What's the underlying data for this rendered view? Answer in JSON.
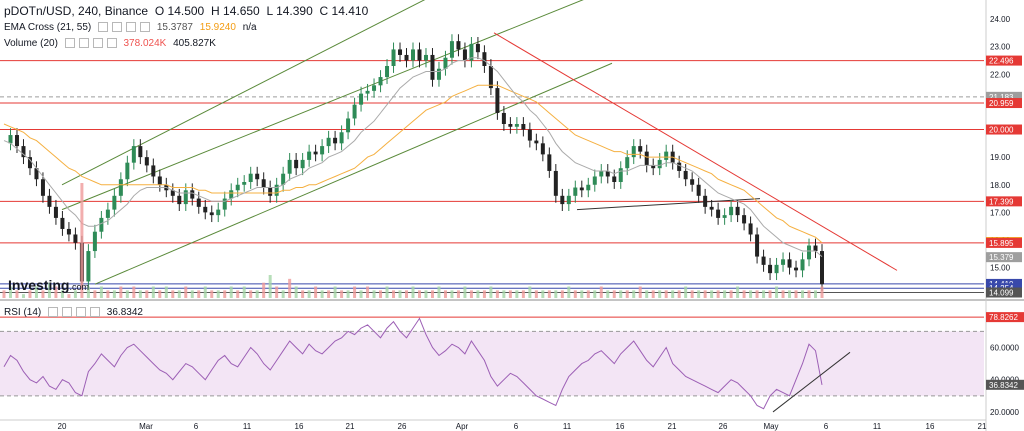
{
  "header": {
    "symbol": "pDOTn/USD, 240, Binance",
    "open": "O 14.500",
    "high": "H 14.650",
    "low": "L 14.390",
    "close": "C 14.410"
  },
  "ema_legend": {
    "label": "EMA Cross (21, 55)",
    "v1": "15.3787",
    "v2": "15.9240",
    "v3": "n/a"
  },
  "volume_legend": {
    "label": "Volume (20)",
    "v1": "378.024K",
    "v2": "405.827K"
  },
  "rsi_legend": {
    "label": "RSI (14)",
    "value": "36.8342"
  },
  "logo": {
    "text": "Investing",
    "suffix": ".com"
  },
  "colors": {
    "up": "#26a69a",
    "down": "#ef5350",
    "candle_body": "#222222",
    "candle_up": "#2e8b57",
    "ema_fast": "#aaaaaa",
    "ema_slow": "#f5b041",
    "channel": "#5a8a3a",
    "resistance": "#e53935",
    "support": "#3949ab",
    "rsi_line": "#9c5fb5",
    "rsi_band": "#f3e5f5",
    "axis_text": "#131722"
  },
  "chart_data": {
    "type": "candlestick",
    "x_ticks": [
      "20",
      "Mar",
      "6",
      "11",
      "16",
      "21",
      "26",
      "Apr",
      "6",
      "11",
      "16",
      "21",
      "26",
      "May",
      "6",
      "11",
      "16",
      "21"
    ],
    "y_ticks": [
      24.0,
      23.0,
      22.0,
      21.0,
      20.0,
      19.0,
      18.0,
      17.0,
      16.0,
      15.0
    ],
    "ylim": [
      13.9,
      24.4
    ],
    "levels": [
      {
        "label": "22.496",
        "value": 22.496,
        "color": "#e53935",
        "kind": "line"
      },
      {
        "label": "21.183",
        "value": 21.183,
        "color": "#9e9e9e",
        "kind": "dashed"
      },
      {
        "label": "20.959",
        "value": 20.959,
        "color": "#e53935",
        "kind": "line"
      },
      {
        "label": "20.000",
        "value": 20.0,
        "color": "#e53935",
        "kind": "line"
      },
      {
        "label": "17.399",
        "value": 17.399,
        "color": "#e53935",
        "kind": "line"
      },
      {
        "label": "15.924",
        "value": 15.924,
        "color": "#f39c12",
        "kind": "tag"
      },
      {
        "label": "15.895",
        "value": 15.895,
        "color": "#e53935",
        "kind": "line"
      },
      {
        "label": "15.379",
        "value": 15.379,
        "color": "#9e9e9e",
        "kind": "tag"
      },
      {
        "label": "14.410",
        "value": 14.41,
        "color": "#3949ab",
        "kind": "line"
      },
      {
        "label": "14.254",
        "value": 14.254,
        "color": "#3949ab",
        "kind": "line"
      },
      {
        "label": "14.099",
        "value": 14.099,
        "color": "#555555",
        "kind": "line"
      }
    ],
    "price_series": [
      19.5,
      19.8,
      19.4,
      19.0,
      18.6,
      18.2,
      17.6,
      17.2,
      16.8,
      16.4,
      16.2,
      15.9,
      14.5,
      15.6,
      16.3,
      16.8,
      17.1,
      17.6,
      18.2,
      18.8,
      19.4,
      19.0,
      18.7,
      18.3,
      18.0,
      17.8,
      17.6,
      17.3,
      17.8,
      17.5,
      17.2,
      17.0,
      16.9,
      17.1,
      17.5,
      17.8,
      18.0,
      18.1,
      18.4,
      18.2,
      17.9,
      17.6,
      18.0,
      18.4,
      18.9,
      18.6,
      18.9,
      19.2,
      19.1,
      19.4,
      19.7,
      19.5,
      19.9,
      20.4,
      20.9,
      21.3,
      21.4,
      21.6,
      21.9,
      22.3,
      22.9,
      22.7,
      22.5,
      22.9,
      22.5,
      22.7,
      21.8,
      22.2,
      22.6,
      23.2,
      22.9,
      22.5,
      23.1,
      22.8,
      22.3,
      21.5,
      20.6,
      20.2,
      20.1,
      20.2,
      20.0,
      19.6,
      19.5,
      19.1,
      18.5,
      17.6,
      17.3,
      17.6,
      17.9,
      17.8,
      18.0,
      18.3,
      18.5,
      18.3,
      18.1,
      18.6,
      19.0,
      19.4,
      19.2,
      18.7,
      18.6,
      18.9,
      19.2,
      18.8,
      18.5,
      18.2,
      18.0,
      17.6,
      17.2,
      17.1,
      16.8,
      16.9,
      17.2,
      16.9,
      16.6,
      16.2,
      15.4,
      15.1,
      14.8,
      15.1,
      15.3,
      15.0,
      14.9,
      15.3,
      15.8,
      15.6,
      14.4
    ],
    "ema_fast": [
      19.6,
      19.5,
      19.3,
      19.1,
      18.9,
      18.6,
      18.3,
      18.0,
      17.7,
      17.4,
      17.1,
      16.9,
      16.6,
      16.5,
      16.5,
      16.6,
      16.7,
      16.9,
      17.1,
      17.3,
      17.6,
      17.8,
      17.9,
      17.9,
      17.9,
      17.9,
      17.8,
      17.7,
      17.7,
      17.7,
      17.6,
      17.5,
      17.4,
      17.4,
      17.4,
      17.5,
      17.6,
      17.7,
      17.8,
      17.9,
      17.9,
      17.9,
      17.9,
      18.0,
      18.2,
      18.3,
      18.4,
      18.6,
      18.7,
      18.8,
      19.0,
      19.1,
      19.2,
      19.4,
      19.6,
      19.9,
      20.1,
      20.3,
      20.6,
      20.9,
      21.2,
      21.5,
      21.7,
      21.9,
      22.0,
      22.1,
      22.1,
      22.1,
      22.2,
      22.4,
      22.5,
      22.5,
      22.6,
      22.6,
      22.5,
      22.3,
      22.1,
      21.8,
      21.5,
      21.2,
      21.0,
      20.7,
      20.5,
      20.2,
      19.9,
      19.5,
      19.2,
      19.0,
      18.8,
      18.7,
      18.6,
      18.5,
      18.5,
      18.5,
      18.4,
      18.5,
      18.5,
      18.6,
      18.7,
      18.7,
      18.7,
      18.7,
      18.8,
      18.8,
      18.7,
      18.6,
      18.5,
      18.3,
      18.1,
      17.9,
      17.7,
      17.6,
      17.5,
      17.4,
      17.3,
      17.1,
      16.8,
      16.5,
      16.3,
      16.1,
      15.9,
      15.8,
      15.7,
      15.6,
      15.6,
      15.6,
      15.4
    ],
    "ema_slow": [
      20.2,
      20.1,
      20.0,
      19.9,
      19.7,
      19.6,
      19.4,
      19.2,
      19.0,
      18.8,
      18.6,
      18.5,
      18.3,
      18.2,
      18.1,
      18.0,
      18.0,
      18.0,
      18.0,
      18.0,
      18.0,
      18.0,
      18.0,
      18.0,
      18.0,
      18.0,
      17.9,
      17.9,
      17.9,
      17.9,
      17.8,
      17.8,
      17.7,
      17.7,
      17.7,
      17.7,
      17.7,
      17.7,
      17.7,
      17.7,
      17.7,
      17.7,
      17.7,
      17.8,
      17.8,
      17.9,
      17.9,
      18.0,
      18.0,
      18.1,
      18.2,
      18.3,
      18.4,
      18.5,
      18.6,
      18.8,
      19.0,
      19.1,
      19.3,
      19.5,
      19.7,
      19.9,
      20.1,
      20.3,
      20.5,
      20.7,
      20.8,
      20.9,
      21.0,
      21.2,
      21.3,
      21.4,
      21.5,
      21.6,
      21.6,
      21.6,
      21.6,
      21.5,
      21.4,
      21.3,
      21.2,
      21.1,
      21.0,
      20.8,
      20.6,
      20.4,
      20.2,
      20.0,
      19.8,
      19.7,
      19.6,
      19.5,
      19.4,
      19.3,
      19.2,
      19.2,
      19.1,
      19.1,
      19.1,
      19.0,
      19.0,
      19.0,
      19.0,
      19.0,
      18.9,
      18.8,
      18.7,
      18.6,
      18.5,
      18.4,
      18.2,
      18.1,
      18.0,
      17.9,
      17.8,
      17.6,
      17.4,
      17.2,
      17.0,
      16.8,
      16.7,
      16.5,
      16.4,
      16.3,
      16.2,
      16.1,
      15.9
    ],
    "rsi": {
      "ylim": [
        15,
        82
      ],
      "y_ticks": [
        {
          "label": "60.0000",
          "value": 60
        },
        {
          "label": "40.0000",
          "value": 40
        },
        {
          "label": "20.0000",
          "value": 20
        }
      ],
      "tags": [
        {
          "label": "78.8262",
          "value": 78.8262,
          "color": "#e53935"
        },
        {
          "label": "36.8342",
          "value": 36.8342,
          "color": "#555555"
        }
      ],
      "band": [
        30,
        70
      ],
      "values": [
        48,
        55,
        52,
        45,
        40,
        38,
        42,
        36,
        34,
        40,
        38,
        32,
        30,
        45,
        50,
        56,
        52,
        48,
        55,
        60,
        62,
        58,
        54,
        50,
        46,
        44,
        40,
        45,
        50,
        48,
        44,
        40,
        46,
        52,
        55,
        50,
        48,
        54,
        60,
        56,
        50,
        46,
        52,
        58,
        64,
        60,
        56,
        62,
        58,
        56,
        60,
        64,
        66,
        70,
        68,
        72,
        74,
        70,
        66,
        72,
        76,
        70,
        66,
        72,
        78,
        68,
        60,
        55,
        58,
        62,
        60,
        56,
        64,
        58,
        52,
        42,
        36,
        40,
        44,
        42,
        38,
        34,
        30,
        28,
        26,
        24,
        34,
        42,
        46,
        50,
        52,
        56,
        58,
        54,
        50,
        56,
        60,
        64,
        58,
        52,
        48,
        54,
        60,
        50,
        46,
        42,
        40,
        38,
        36,
        34,
        32,
        36,
        40,
        38,
        34,
        30,
        24,
        22,
        30,
        34,
        32,
        30,
        40,
        50,
        62,
        58,
        36.8
      ]
    },
    "volume": [
      2,
      3,
      2,
      1,
      2,
      3,
      2,
      4,
      3,
      2,
      1,
      2,
      30,
      3,
      2,
      3,
      2,
      2,
      3,
      2,
      3,
      2,
      2,
      3,
      2,
      3,
      2,
      2,
      3,
      2,
      2,
      3,
      2,
      2,
      2,
      3,
      2,
      3,
      2,
      2,
      4,
      6,
      3,
      2,
      5,
      3,
      2,
      2,
      3,
      2,
      2,
      3,
      2,
      2,
      3,
      2,
      3,
      2,
      2,
      3,
      2,
      2,
      2,
      3,
      2,
      2,
      2,
      3,
      2,
      2,
      2,
      3,
      2,
      2,
      2,
      3,
      2,
      2,
      2,
      2,
      2,
      3,
      2,
      2,
      2,
      2,
      2,
      3,
      2,
      2,
      2,
      2,
      3,
      2,
      2,
      2,
      2,
      2,
      3,
      2,
      2,
      2,
      2,
      2,
      2,
      3,
      2,
      2,
      2,
      2,
      2,
      2,
      2,
      3,
      2,
      2,
      2,
      2,
      2,
      3,
      2,
      2,
      2,
      2,
      2,
      2,
      3
    ]
  }
}
